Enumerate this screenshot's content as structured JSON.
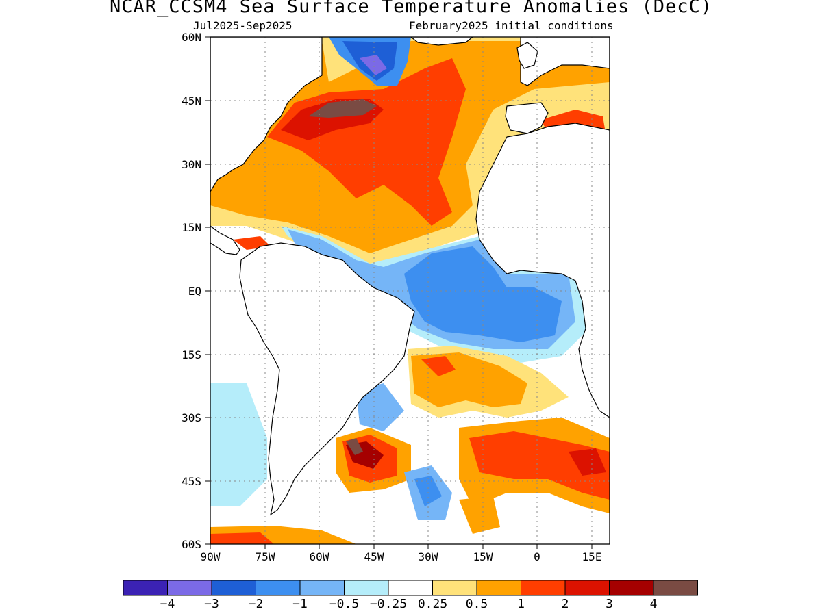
{
  "title": "NCAR_CCSM4 Sea Surface Temperature Anomalies (DecC)",
  "subtitle_left": "Jul2025-Sep2025",
  "subtitle_right": "February2025 initial conditions",
  "map": {
    "lon_range": [
      -90,
      20
    ],
    "lat_range": [
      -60,
      60
    ],
    "lat_labels": [
      "60N",
      "45N",
      "30N",
      "15N",
      "EQ",
      "15S",
      "30S",
      "45S",
      "60S"
    ],
    "lon_labels": [
      "90W",
      "75W",
      "60W",
      "45W",
      "30W",
      "15W",
      "0",
      "15E"
    ],
    "lon_label_values": [
      -90,
      -75,
      -60,
      -45,
      -30,
      -15,
      0,
      15
    ],
    "lat_label_values": [
      60,
      45,
      30,
      15,
      0,
      -15,
      -30,
      -45,
      -60
    ],
    "grid": true,
    "ocean_background": "#ffffff",
    "land_color": "#ffffff"
  },
  "colorbar": {
    "colors": [
      "#3b22b4",
      "#7b6ae6",
      "#1e5fd6",
      "#3d8ff0",
      "#75b5f7",
      "#b5edfa",
      "#ffffff",
      "#ffe27a",
      "#ffa200",
      "#ff3e00",
      "#dc1200",
      "#a50000",
      "#7a4b43"
    ],
    "labels": [
      "-4",
      "-3",
      "-2",
      "-1",
      "-0.5",
      "-0.25",
      "0.25",
      "0.5",
      "1",
      "2",
      "3",
      "4"
    ]
  },
  "anomaly_regions": [
    {
      "name": "north-atlantic-warm-broad",
      "level": "0.5"
    },
    {
      "name": "north-atlantic-warm-core",
      "level": "1"
    },
    {
      "name": "gulf-stream-extension",
      "level": "2"
    },
    {
      "name": "gulf-stream-peak",
      "level": "4"
    },
    {
      "name": "labrador-sea-cool",
      "level": "-1"
    },
    {
      "name": "labrador-sea-cool-core",
      "level": "-3"
    },
    {
      "name": "tropical-atlantic-cool",
      "level": "-1"
    },
    {
      "name": "tropical-atlantic-cool-core",
      "level": "-2"
    },
    {
      "name": "south-atlantic-subtropical-warm",
      "level": "1"
    },
    {
      "name": "south-atlantic-midlatitude-warm",
      "level": "2"
    },
    {
      "name": "brazil-malvinas-confluence-warm",
      "level": "4"
    },
    {
      "name": "southern-ocean-cool",
      "level": "-1"
    }
  ]
}
